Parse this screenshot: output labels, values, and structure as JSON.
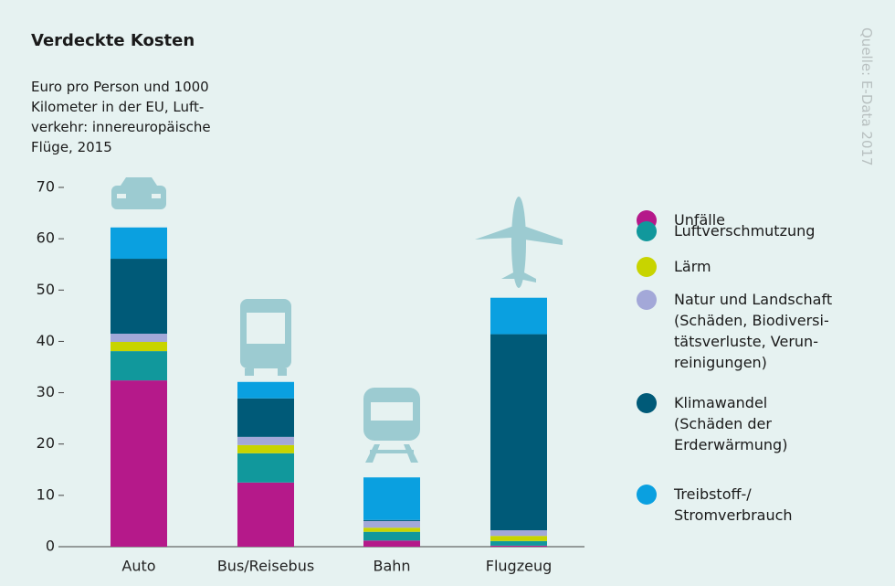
{
  "chart_data": {
    "type": "stacked_bar",
    "title": "Verdeckte Kosten",
    "subtitle": "Euro pro Person und 1000\nKilometer in der EU, Luft-\nverkehr: innereuropäische\nFlüge, 2015",
    "source": "Quelle: E-Data 2017",
    "categories": [
      "Auto",
      "Bus/Reisebus",
      "Bahn",
      "Flugzeug"
    ],
    "series": [
      {
        "name": "Unfälle",
        "color": "#b5198a",
        "values": [
          32.4,
          12.5,
          1.2,
          0.2
        ]
      },
      {
        "name": "Luftverschmutzung",
        "color": "#11989c",
        "values": [
          5.7,
          5.7,
          1.7,
          0.9
        ]
      },
      {
        "name": "Lärm",
        "color": "#c8d400",
        "values": [
          1.8,
          1.6,
          0.8,
          1.0
        ]
      },
      {
        "name": "Natur und Landschaft\n(Schäden, Biodiversi-\ntätsverluste, Verun-\nreinigungen)",
        "color": "#a3a8d8",
        "values": [
          1.6,
          1.6,
          1.3,
          1.1
        ]
      },
      {
        "name": "Klimawandel\n(Schäden der\nErderwärmung)",
        "color": "#005a78",
        "values": [
          14.6,
          7.5,
          0.2,
          38.2
        ]
      },
      {
        "name": "Treibstoff-/\nStromverbrauch",
        "color": "#0aa0e0",
        "values": [
          6.1,
          3.2,
          8.3,
          7.1
        ]
      }
    ],
    "ylim": [
      0,
      70
    ],
    "yticks": [
      0,
      10,
      20,
      30,
      40,
      50,
      60,
      70
    ],
    "grid": false
  }
}
